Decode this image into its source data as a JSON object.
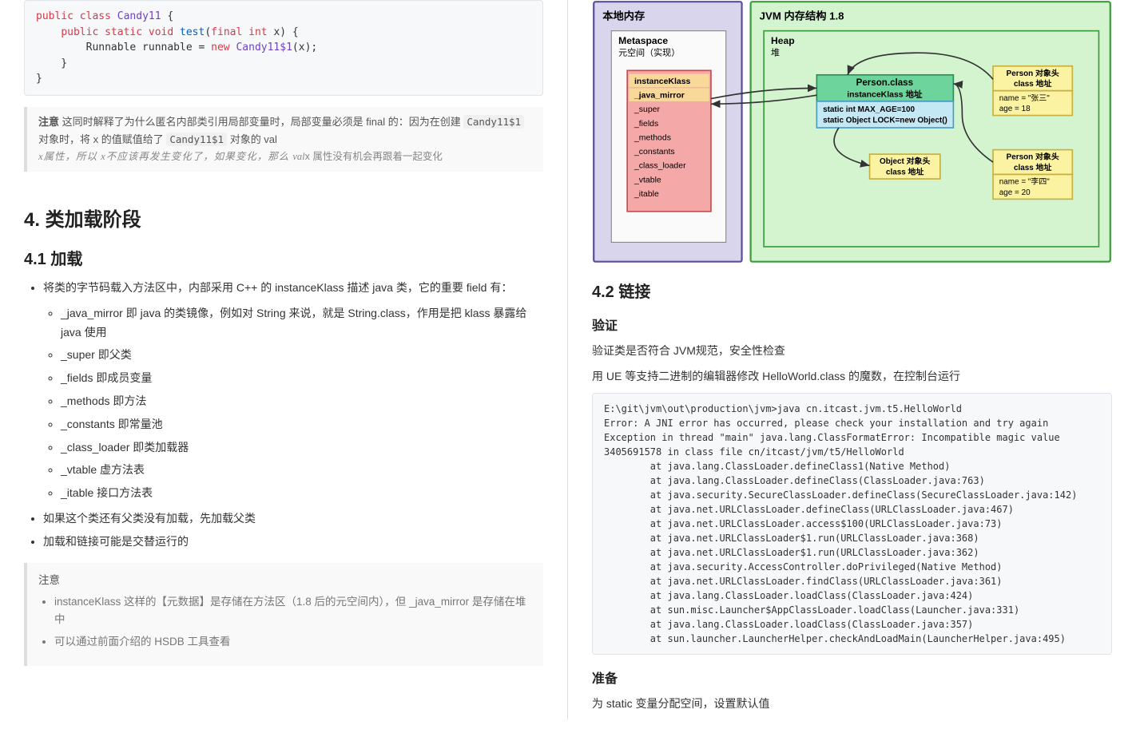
{
  "left": {
    "code1": {
      "lines": [
        {
          "tokens": [
            {
              "t": "public ",
              "c": "kw"
            },
            {
              "t": "class ",
              "c": "kw"
            },
            {
              "t": "Candy11",
              "c": "cls"
            },
            {
              "t": " {"
            }
          ]
        },
        {
          "indent": 1,
          "tokens": [
            {
              "t": "public static void ",
              "c": "kw"
            },
            {
              "t": "test",
              "c": "fn"
            },
            {
              "t": "("
            },
            {
              "t": "final int",
              "c": "kw"
            },
            {
              "t": " x) {"
            }
          ]
        },
        {
          "indent": 2,
          "tokens": [
            {
              "t": "Runnable runnable = "
            },
            {
              "t": "new ",
              "c": "kw"
            },
            {
              "t": "Candy11$1",
              "c": "cls"
            },
            {
              "t": "(x);"
            }
          ]
        },
        {
          "indent": 1,
          "tokens": [
            {
              "t": "}"
            }
          ]
        },
        {
          "tokens": [
            {
              "t": "}"
            }
          ]
        }
      ]
    },
    "quote1": {
      "lead": "注意",
      "line1_a": " 这同时解释了为什么匿名内部类引用局部变量时，局部变量必须是 final 的：因为在创建 ",
      "code1": "Candy11$1",
      "line1_b": " 对象时，将 x 的值赋值给了 ",
      "code2": "Candy11$1",
      "line1_c": " 对象的 val",
      "line2_a": "x属性，所以 x不应该再发生变化了，如果变化，那么 ",
      "ital": "val",
      "line2_b": "x 属性没有机会再跟着一起变化"
    },
    "h2": "4. 类加载阶段",
    "h3": "4.1 加载",
    "bullets1": [
      "将类的字节码载入方法区中，内部采用 C++ 的 instanceKlass 描述 java 类，它的重要 field 有："
    ],
    "sub_bullets": [
      "_java_mirror 即 java 的类镜像，例如对 String 来说，就是 String.class，作用是把 klass 暴露给 java 使用",
      "_super 即父类",
      "_fields 即成员变量",
      "_methods 即方法",
      "_constants 即常量池",
      "_class_loader 即类加载器",
      "_vtable 虚方法表",
      "_itable 接口方法表"
    ],
    "bullets2": [
      "如果这个类还有父类没有加载，先加载父类",
      "加载和链接可能是交替运行的"
    ],
    "note": {
      "title": "注意",
      "items": [
        "instanceKlass 这样的【元数据】是存储在方法区（1.8 后的元空间内），但 _java_mirror 是存储在堆中",
        "可以通过前面介绍的 HSDB 工具查看"
      ]
    }
  },
  "right": {
    "diagram": {
      "local_mem_title": "本地内存",
      "metaspace_title": "Metaspace",
      "metaspace_sub": "元空间（实现）",
      "klass_fields": [
        "instanceKlass",
        "_java_mirror",
        "_super",
        "_fields",
        "_methods",
        "_constants",
        "_class_loader",
        "_vtable",
        "_itable"
      ],
      "jvm_title": "JVM 内存结构 1.8",
      "heap_title": "Heap",
      "heap_sub": "堆",
      "person_class": "Person.class",
      "person_sub": "instanceKlass 地址",
      "static1": "static int  MAX_AGE=100",
      "static2": "static Object LOCK=new Object()",
      "obj_header": "Object 对象头",
      "class_addr": "class 地址",
      "p1_header": "Person 对象头",
      "p1_name": "name = \"张三\"",
      "p1_age": "age = 18",
      "p2_header": "Person 对象头",
      "p2_name": "name = \"李四\"",
      "p2_age": "age = 20",
      "colors": {
        "local_bg": "#d8d5ec",
        "local_border": "#5a4e9c",
        "metaspace_bg": "#f5f5f5",
        "klass_bg": "#f4a8a8",
        "klass_border": "#c05050",
        "klass_hl_bg": "#f9d99a",
        "jvm_bg": "#d4f4d0",
        "jvm_border": "#3a9c3a",
        "heap_border": "#3a9c3a",
        "person_bg": "#6dd59c",
        "person_border": "#2a8c5a",
        "static_bg": "#c5e8f5",
        "static_border": "#4a9cc5",
        "yellow_bg": "#fbf3a2",
        "yellow_border": "#c5b040"
      }
    },
    "h3": "4.2 链接",
    "h4_1": "验证",
    "p1": "验证类是否符合 JVM规范，安全性检查",
    "p2": "用 UE 等支持二进制的编辑器修改 HelloWorld.class 的魔数，在控制台运行",
    "stack": [
      "E:\\git\\jvm\\out\\production\\jvm>java cn.itcast.jvm.t5.HelloWorld",
      "Error: A JNI error has occurred, please check your installation and try again",
      "Exception in thread \"main\" java.lang.ClassFormatError: Incompatible magic value 3405691578 in class file cn/itcast/jvm/t5/HelloWorld",
      "        at java.lang.ClassLoader.defineClass1(Native Method)",
      "        at java.lang.ClassLoader.defineClass(ClassLoader.java:763)",
      "        at java.security.SecureClassLoader.defineClass(SecureClassLoader.java:142)",
      "        at java.net.URLClassLoader.defineClass(URLClassLoader.java:467)",
      "        at java.net.URLClassLoader.access$100(URLClassLoader.java:73)",
      "        at java.net.URLClassLoader$1.run(URLClassLoader.java:368)",
      "        at java.net.URLClassLoader$1.run(URLClassLoader.java:362)",
      "        at java.security.AccessController.doPrivileged(Native Method)",
      "        at java.net.URLClassLoader.findClass(URLClassLoader.java:361)",
      "        at java.lang.ClassLoader.loadClass(ClassLoader.java:424)",
      "        at sun.misc.Launcher$AppClassLoader.loadClass(Launcher.java:331)",
      "        at java.lang.ClassLoader.loadClass(ClassLoader.java:357)",
      "        at sun.launcher.LauncherHelper.checkAndLoadMain(LauncherHelper.java:495)"
    ],
    "h4_2": "准备",
    "p3": "为 static 变量分配空间，设置默认值"
  }
}
